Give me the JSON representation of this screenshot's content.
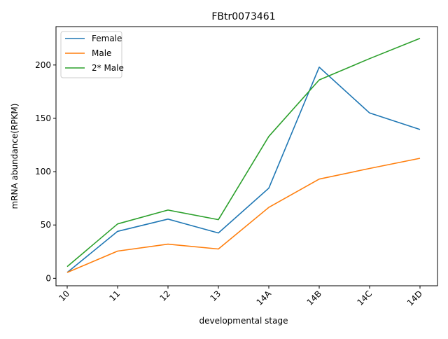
{
  "chart_data": {
    "type": "line",
    "title": "FBtr0073461",
    "xlabel": "developmental stage",
    "ylabel": "mRNA abundance(RPKM)",
    "categories": [
      "10",
      "11",
      "12",
      "13",
      "14A",
      "14B",
      "14C",
      "14D"
    ],
    "ylim": [
      -7,
      236
    ],
    "yticks": [
      0,
      50,
      100,
      150,
      200
    ],
    "grid": false,
    "legend_position": "top-left",
    "series": [
      {
        "name": "Female",
        "color": "#1f77b4",
        "values": [
          5.5,
          44,
          55.5,
          42.5,
          84.5,
          198,
          155,
          139.5
        ]
      },
      {
        "name": "Male",
        "color": "#ff7f0e",
        "values": [
          5.5,
          25.5,
          32,
          27.5,
          66.5,
          93,
          103,
          112.5
        ]
      },
      {
        "name": "2* Male",
        "color": "#2ca02c",
        "values": [
          11,
          51,
          64,
          55,
          133,
          186,
          206,
          225
        ]
      }
    ]
  }
}
